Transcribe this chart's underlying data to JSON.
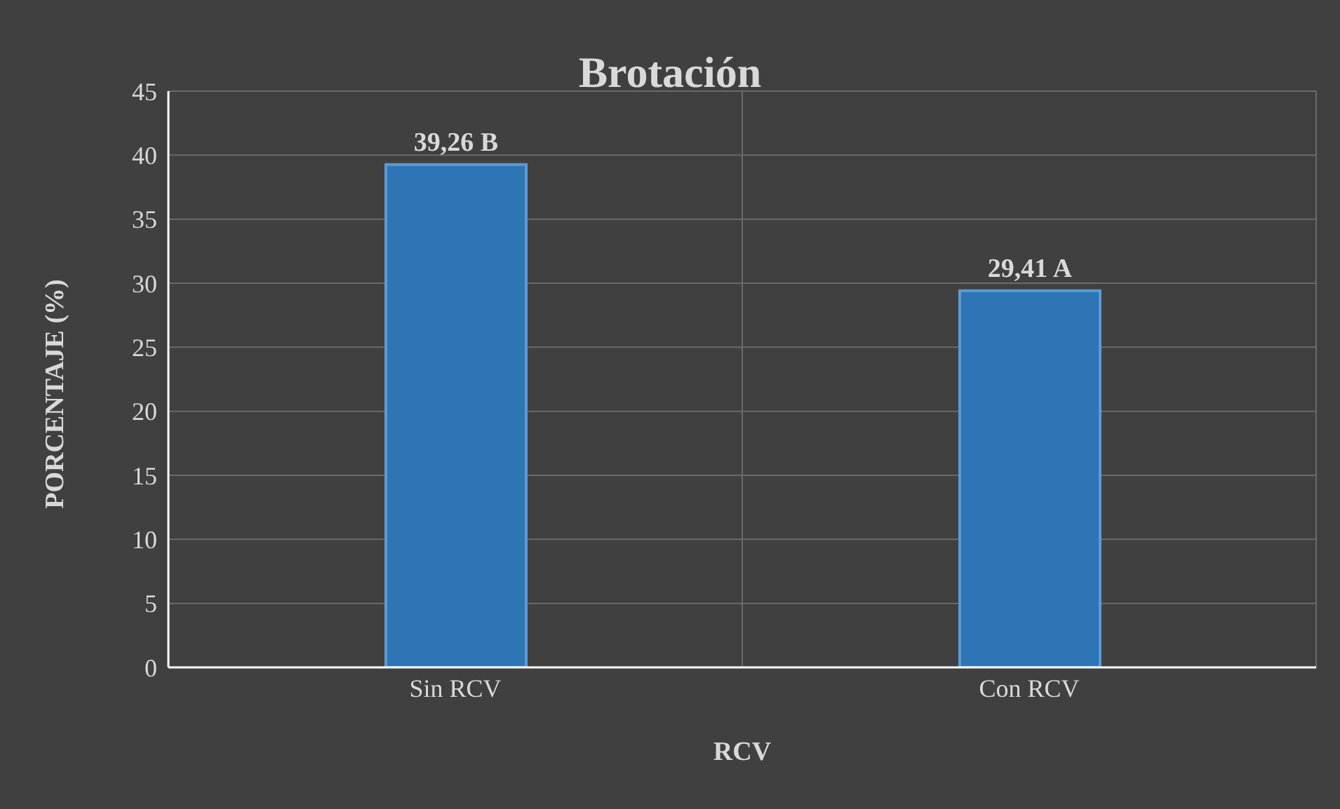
{
  "chart_data": {
    "type": "bar",
    "title": "Brotación",
    "xlabel": "RCV",
    "ylabel": "PORCENTAJE (%)",
    "categories": [
      "Sin RCV",
      "Con RCV"
    ],
    "values": [
      39.26,
      29.41
    ],
    "value_labels": [
      "39,26 B",
      "29,41 A"
    ],
    "color": "#2e75b6",
    "ylim": [
      0,
      45
    ],
    "yticks": [
      0,
      5,
      10,
      15,
      20,
      25,
      30,
      35,
      40,
      45
    ],
    "grid": true
  }
}
